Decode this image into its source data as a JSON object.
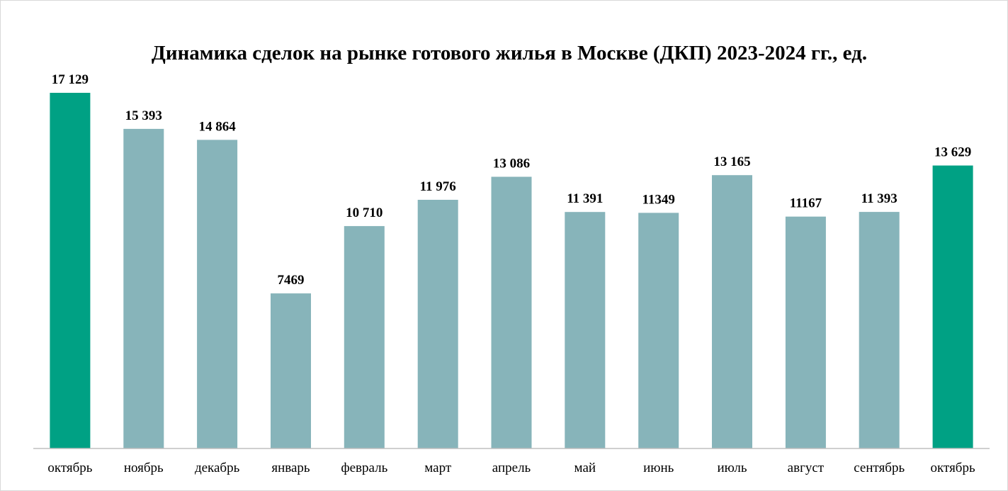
{
  "chart_data": {
    "type": "bar",
    "title": "Динамика сделок на рынке готового жилья в Москве (ДКП) 2023-2024 гг., ед.",
    "xlabel": "",
    "ylabel": "",
    "ylim": [
      0,
      18000
    ],
    "grid": false,
    "legend": "none",
    "categories": [
      "октябрь",
      "ноябрь",
      "декабрь",
      "январь",
      "февраль",
      "март",
      "апрель",
      "май",
      "июнь",
      "июль",
      "август",
      "сентябрь",
      "октябрь"
    ],
    "values": [
      17129,
      15393,
      14864,
      7469,
      10710,
      11976,
      13086,
      11391,
      11349,
      13165,
      11167,
      11393,
      13629
    ],
    "value_labels": [
      "17 129",
      "15 393",
      "14 864",
      "7469",
      "10 710",
      "11 976",
      "13 086",
      "11 391",
      "11349",
      "13 165",
      "11167",
      "11 393",
      "13 629"
    ],
    "highlighted": [
      true,
      false,
      false,
      false,
      false,
      false,
      false,
      false,
      false,
      false,
      false,
      false,
      true
    ],
    "colors": {
      "highlight": "#00A184",
      "default": "#87B4BA",
      "axis": "#bfbfbf"
    }
  }
}
